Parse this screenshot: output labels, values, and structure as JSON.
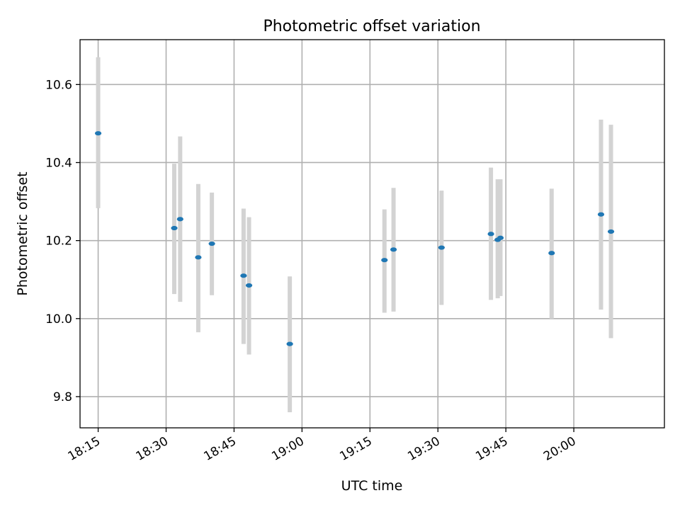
{
  "chart_data": {
    "type": "scatter",
    "title": "Photometric offset variation",
    "xlabel": "UTC time",
    "ylabel": "Photometric offset",
    "x_axis_type": "time",
    "xlim": [
      "18:11",
      "20:20"
    ],
    "ylim": [
      9.72,
      10.715
    ],
    "xticks": [
      "18:15",
      "18:30",
      "18:45",
      "19:00",
      "19:15",
      "19:30",
      "19:45",
      "20:00"
    ],
    "yticks": [
      9.8,
      10.0,
      10.2,
      10.4,
      10.6
    ],
    "ytick_labels": [
      "9.8",
      "10.0",
      "10.2",
      "10.4",
      "10.6"
    ],
    "grid": true,
    "point_color": "#1f77b4",
    "errorbar_color": "#d3d3d3",
    "points": [
      {
        "t": "18:15:00",
        "y": 10.475,
        "lo": 10.283,
        "hi": 10.67
      },
      {
        "t": "18:31:48",
        "y": 10.232,
        "lo": 10.063,
        "hi": 10.397
      },
      {
        "t": "18:33:06",
        "y": 10.255,
        "lo": 10.043,
        "hi": 10.467
      },
      {
        "t": "18:37:06",
        "y": 10.157,
        "lo": 9.965,
        "hi": 10.345
      },
      {
        "t": "18:40:06",
        "y": 10.192,
        "lo": 10.06,
        "hi": 10.323
      },
      {
        "t": "18:47:06",
        "y": 10.11,
        "lo": 9.935,
        "hi": 10.282
      },
      {
        "t": "18:48:18",
        "y": 10.085,
        "lo": 9.908,
        "hi": 10.26
      },
      {
        "t": "18:57:18",
        "y": 9.935,
        "lo": 9.76,
        "hi": 10.108
      },
      {
        "t": "19:18:12",
        "y": 10.15,
        "lo": 10.015,
        "hi": 10.28
      },
      {
        "t": "19:20:12",
        "y": 10.177,
        "lo": 10.018,
        "hi": 10.335
      },
      {
        "t": "19:30:48",
        "y": 10.182,
        "lo": 10.035,
        "hi": 10.328
      },
      {
        "t": "19:41:42",
        "y": 10.217,
        "lo": 10.048,
        "hi": 10.387
      },
      {
        "t": "19:43:12",
        "y": 10.202,
        "lo": 10.052,
        "hi": 10.357
      },
      {
        "t": "19:43:48",
        "y": 10.207,
        "lo": 10.058,
        "hi": 10.357
      },
      {
        "t": "19:55:06",
        "y": 10.168,
        "lo": 10.0,
        "hi": 10.333
      },
      {
        "t": "20:06:00",
        "y": 10.267,
        "lo": 10.023,
        "hi": 10.51
      },
      {
        "t": "20:08:12",
        "y": 10.223,
        "lo": 9.95,
        "hi": 10.497
      }
    ]
  }
}
